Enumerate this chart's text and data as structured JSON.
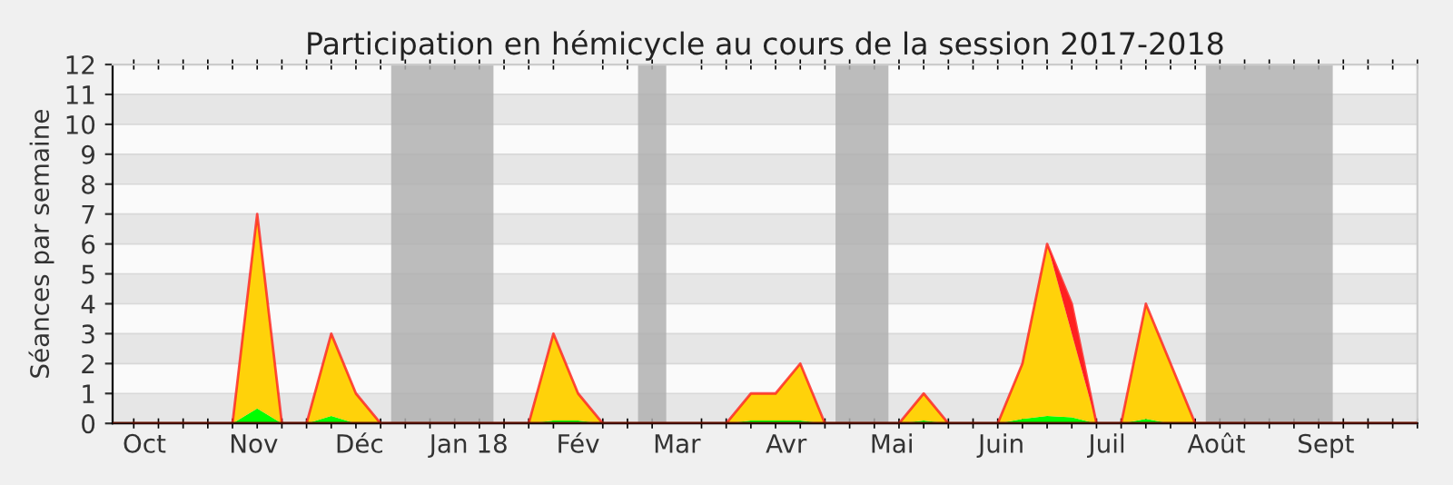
{
  "chart_data": {
    "type": "area",
    "title": "Participation en hémicycle au cours de la session 2017-2018",
    "ylabel": "Séances par semaine",
    "stacked": true,
    "x": [
      "2017-09-28",
      "2017-10-05",
      "2017-10-12",
      "2017-10-19",
      "2017-10-26",
      "2017-11-02",
      "2017-11-09",
      "2017-11-16",
      "2017-11-23",
      "2017-11-30",
      "2017-12-07",
      "2017-12-14",
      "2017-12-21",
      "2017-12-28",
      "2018-01-04",
      "2018-01-11",
      "2018-01-18",
      "2018-01-25",
      "2018-02-01",
      "2018-02-08",
      "2018-02-15",
      "2018-02-22",
      "2018-03-01",
      "2018-03-08",
      "2018-03-15",
      "2018-03-22",
      "2018-03-29",
      "2018-04-05",
      "2018-04-12",
      "2018-04-19",
      "2018-04-26",
      "2018-05-03",
      "2018-05-10",
      "2018-05-17",
      "2018-05-24",
      "2018-05-31",
      "2018-06-07",
      "2018-06-14",
      "2018-06-21",
      "2018-06-28",
      "2018-07-05",
      "2018-07-12",
      "2018-07-19",
      "2018-07-26",
      "2018-08-02",
      "2018-08-09",
      "2018-08-16",
      "2018-08-23",
      "2018-08-30",
      "2018-09-06",
      "2018-09-13",
      "2018-09-20",
      "2018-09-27"
    ],
    "series": [
      {
        "color": "#00ff00",
        "values": [
          0,
          0,
          0,
          0,
          0,
          0.5,
          0,
          0,
          0.25,
          0,
          0,
          0,
          0,
          0,
          0,
          0,
          0,
          0.1,
          0.1,
          0,
          0,
          0,
          0,
          0,
          0,
          0.1,
          0.1,
          0.1,
          0,
          0,
          0,
          0,
          0.1,
          0,
          0,
          0,
          0.15,
          0.25,
          0.2,
          0,
          0,
          0.15,
          0,
          0,
          0,
          0,
          0,
          0,
          0,
          0,
          0,
          0,
          0
        ]
      },
      {
        "color": "#ffd20a",
        "values": [
          0,
          0,
          0,
          0,
          0,
          6.5,
          0,
          0,
          2.75,
          1,
          0,
          0,
          0,
          0,
          0,
          0,
          0,
          2.9,
          0.9,
          0,
          0,
          0,
          0,
          0,
          0,
          0.9,
          0.9,
          1.9,
          0,
          0,
          0,
          0,
          0.9,
          0,
          0,
          0,
          1.85,
          5.75,
          2.8,
          0,
          0,
          3.85,
          2,
          0,
          0,
          0,
          0,
          0,
          0,
          0,
          0,
          0,
          0
        ]
      },
      {
        "color": "#ff2020",
        "values": [
          null,
          null,
          null,
          null,
          null,
          null,
          null,
          null,
          null,
          null,
          null,
          null,
          null,
          null,
          null,
          null,
          null,
          null,
          null,
          null,
          null,
          null,
          null,
          null,
          null,
          null,
          null,
          null,
          null,
          null,
          null,
          null,
          null,
          null,
          null,
          null,
          null,
          0,
          1,
          0,
          null,
          null,
          null,
          null,
          null,
          null,
          null,
          null,
          null,
          null,
          null,
          null,
          null
        ]
      }
    ],
    "bands": [
      {
        "axis": "x",
        "from": "2017-12-10",
        "to": "2018-01-08",
        "color": "#b0b0b0"
      },
      {
        "axis": "x",
        "from": "2018-02-18",
        "to": "2018-02-26",
        "color": "#b0b0b0"
      },
      {
        "axis": "x",
        "from": "2018-04-15",
        "to": "2018-04-30",
        "color": "#b0b0b0"
      },
      {
        "axis": "x",
        "from": "2018-07-29",
        "to": "2018-09-03",
        "color": "#b0b0b0"
      }
    ],
    "xlim": [
      "2017-09-22",
      "2018-09-27"
    ],
    "xticks": [
      {
        "value": "2017-10-01",
        "label": "Oct"
      },
      {
        "value": "2017-11-01",
        "label": "Nov"
      },
      {
        "value": "2017-12-01",
        "label": "Déc"
      },
      {
        "value": "2018-01-01",
        "label": "Jan 18"
      },
      {
        "value": "2018-02-01",
        "label": "Fév"
      },
      {
        "value": "2018-03-01",
        "label": "Mar"
      },
      {
        "value": "2018-04-01",
        "label": "Avr"
      },
      {
        "value": "2018-05-01",
        "label": "Mai"
      },
      {
        "value": "2018-06-01",
        "label": "Juin"
      },
      {
        "value": "2018-07-01",
        "label": "Juil"
      },
      {
        "value": "2018-08-01",
        "label": "Août"
      },
      {
        "value": "2018-09-01",
        "label": "Sept"
      }
    ],
    "ylim": [
      0,
      12
    ],
    "yticks": [
      0,
      1,
      2,
      3,
      4,
      5,
      6,
      7,
      8,
      9,
      10,
      11,
      12
    ],
    "grid": "y"
  }
}
